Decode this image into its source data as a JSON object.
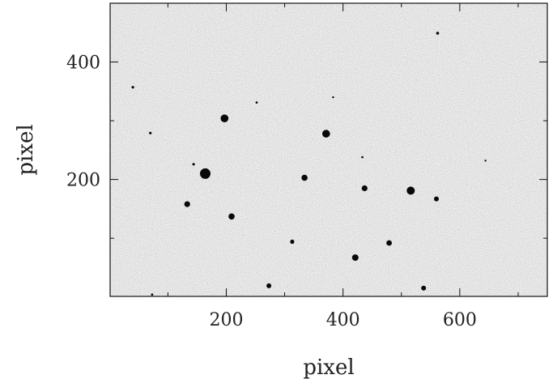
{
  "image": {
    "description_type": "astronomical CCD star field, grayscale",
    "x_axis": {
      "label": "pixel",
      "range": [
        1,
        750
      ],
      "ticks": [
        200,
        400,
        600
      ],
      "tick_labels": [
        "200",
        "400",
        "600"
      ]
    },
    "y_axis": {
      "label": "pixel",
      "range": [
        1,
        500
      ],
      "ticks": [
        200,
        400
      ],
      "tick_labels": [
        "200",
        "400"
      ]
    },
    "colors": {
      "background": "#ffffff",
      "field": "#c9c9c9",
      "star": "#080808",
      "axis": "#111111"
    },
    "stars": [
      {
        "x": 164,
        "y": 210,
        "mag": 6.5
      },
      {
        "x": 197,
        "y": 304,
        "mag": 4.8
      },
      {
        "x": 371,
        "y": 278,
        "mag": 4.8
      },
      {
        "x": 516,
        "y": 181,
        "mag": 5.0
      },
      {
        "x": 334,
        "y": 203,
        "mag": 3.8
      },
      {
        "x": 437,
        "y": 185,
        "mag": 3.6
      },
      {
        "x": 560,
        "y": 167,
        "mag": 3.0
      },
      {
        "x": 133,
        "y": 158,
        "mag": 3.6
      },
      {
        "x": 209,
        "y": 137,
        "mag": 3.8
      },
      {
        "x": 479,
        "y": 92,
        "mag": 3.4
      },
      {
        "x": 421,
        "y": 67,
        "mag": 4.0
      },
      {
        "x": 313,
        "y": 94,
        "mag": 2.6
      },
      {
        "x": 273,
        "y": 19,
        "mag": 3.0
      },
      {
        "x": 538,
        "y": 15,
        "mag": 3.0
      },
      {
        "x": 562,
        "y": 449,
        "mag": 1.8
      },
      {
        "x": 40,
        "y": 357,
        "mag": 1.6
      },
      {
        "x": 70,
        "y": 279,
        "mag": 1.6
      },
      {
        "x": 252,
        "y": 331,
        "mag": 1.4
      },
      {
        "x": 144,
        "y": 226,
        "mag": 1.6
      },
      {
        "x": 433,
        "y": 238,
        "mag": 1.3
      },
      {
        "x": 383,
        "y": 340,
        "mag": 1.2
      },
      {
        "x": 644,
        "y": 232,
        "mag": 1.2
      },
      {
        "x": 73,
        "y": 4,
        "mag": 1.4
      }
    ]
  }
}
